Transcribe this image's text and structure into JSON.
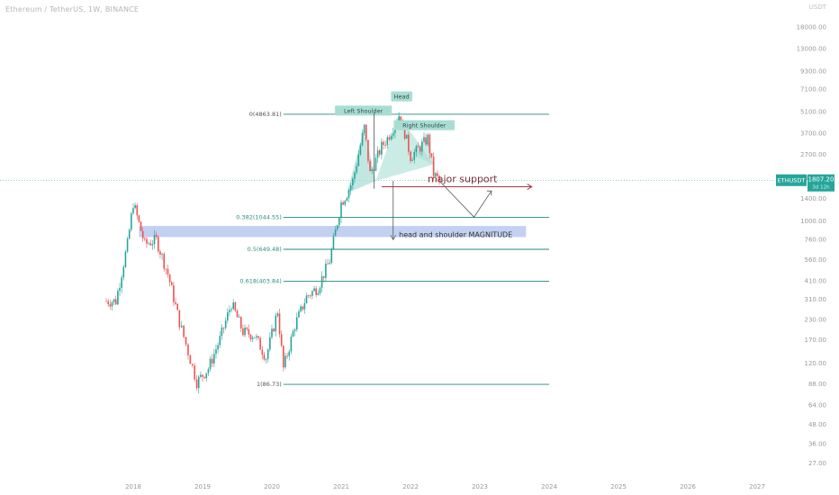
{
  "header": {
    "symbol_title": "Ethereum / TetherUS, 1W, BINANCE",
    "currency": "USDT"
  },
  "price_axis": {
    "labels": [
      "18000.00",
      "13000.00",
      "9300.00",
      "7100.00",
      "5100.00",
      "3700.00",
      "2700.00",
      "1900.00",
      "1400.00",
      "1000.00",
      "760.00",
      "560.00",
      "410.00",
      "310.00",
      "230.00",
      "170.00",
      "120.00",
      "88.00",
      "64.00",
      "48.00",
      "36.00",
      "27.00"
    ],
    "scale": "log"
  },
  "time_axis": {
    "labels": [
      "2018",
      "2019",
      "2020",
      "2021",
      "2022",
      "2023",
      "2024",
      "2025",
      "2026",
      "2027"
    ]
  },
  "last_price": {
    "ticker": "ETHUSDT",
    "price": "1807.20",
    "countdown": "3d 12h"
  },
  "fibonacci": {
    "levels": [
      {
        "label": "0(4863.81)",
        "price": 4863.81
      },
      {
        "label": "0.382(1044.55)",
        "price": 1044.55
      },
      {
        "label": "0.5(649.48)",
        "price": 649.48
      },
      {
        "label": "0.618(403.84)",
        "price": 403.84
      },
      {
        "label": "1(86.73)",
        "price": 86.73
      }
    ]
  },
  "annotations": {
    "left_shoulder": "Left Shoulder",
    "head": "Head",
    "right_shoulder": "Right Shoulder",
    "major_support": "major support",
    "magnitude": "head and shoulder MAGNITUDE"
  },
  "colors": {
    "up": "#26a69a",
    "down": "#ef5350",
    "fib_line": "#22897c",
    "support": "#9e3b46",
    "zone": "#b7c9f0",
    "pattern": "#a8ddd4"
  },
  "chart_data": {
    "type": "candlestick",
    "title": "Ethereum / TetherUS, 1W, BINANCE",
    "y_scale": "log",
    "ylim": [
      27,
      18000
    ],
    "x": [
      "2017-08",
      "2017-10",
      "2017-12",
      "2018-01",
      "2018-03",
      "2018-05",
      "2018-07",
      "2018-09",
      "2018-12",
      "2019-02",
      "2019-04",
      "2019-06",
      "2019-08",
      "2019-10",
      "2019-12",
      "2020-02",
      "2020-03",
      "2020-05",
      "2020-07",
      "2020-09",
      "2020-11",
      "2021-01",
      "2021-02",
      "2021-03",
      "2021-05",
      "2021-06",
      "2021-08",
      "2021-09",
      "2021-11",
      "2021-12",
      "2022-01",
      "2022-02",
      "2022-04",
      "2022-05",
      "2022-06"
    ],
    "close": [
      300,
      300,
      700,
      1300,
      700,
      750,
      450,
      220,
      90,
      110,
      170,
      290,
      190,
      180,
      130,
      260,
      110,
      210,
      320,
      370,
      550,
      1300,
      1500,
      1800,
      4000,
      2000,
      3000,
      3400,
      4800,
      3700,
      2600,
      2800,
      3400,
      2000,
      1800
    ],
    "series": [
      {
        "values": [
          300,
          300,
          700,
          1300,
          700,
          750,
          450,
          220,
          90,
          110,
          170,
          290,
          190,
          180,
          130,
          260,
          110,
          210,
          320,
          370,
          550,
          1300,
          1500,
          1800,
          4000,
          2000,
          3000,
          3400,
          4800,
          3700,
          2600,
          2800,
          3400,
          2000,
          1800
        ]
      }
    ]
  }
}
